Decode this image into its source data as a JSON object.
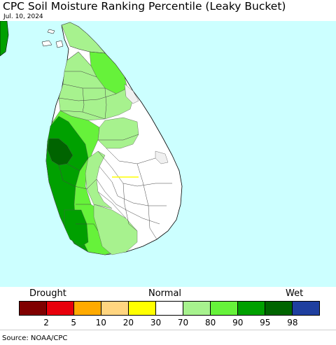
{
  "title": "CPC Soil Moisture Ranking Percentile (Leaky Bucket)",
  "date": "Jul. 10, 2024",
  "legend": {
    "left_label": "Drought",
    "center_label": "Normal",
    "right_label": "Wet",
    "colors": [
      "#800000",
      "#e8000b",
      "#ffaa00",
      "#ffd580",
      "#ffff00",
      "#ffffff",
      "#a7f28e",
      "#66f23a",
      "#00a000",
      "#006400",
      "#1f3f9f"
    ],
    "ticks": [
      "2",
      "5",
      "10",
      "20",
      "30",
      "70",
      "80",
      "90",
      "95",
      "98"
    ]
  },
  "source": "Source: NOAA/CPC",
  "map_colors": {
    "ocean": "#ccffff",
    "land_normal": "#ffffff",
    "wet_70_80": "#a7f28e",
    "wet_80_90": "#66f23a",
    "wet_90_95": "#00a000",
    "wet_95_98": "#006400",
    "no_data": "#f0f0f0"
  }
}
